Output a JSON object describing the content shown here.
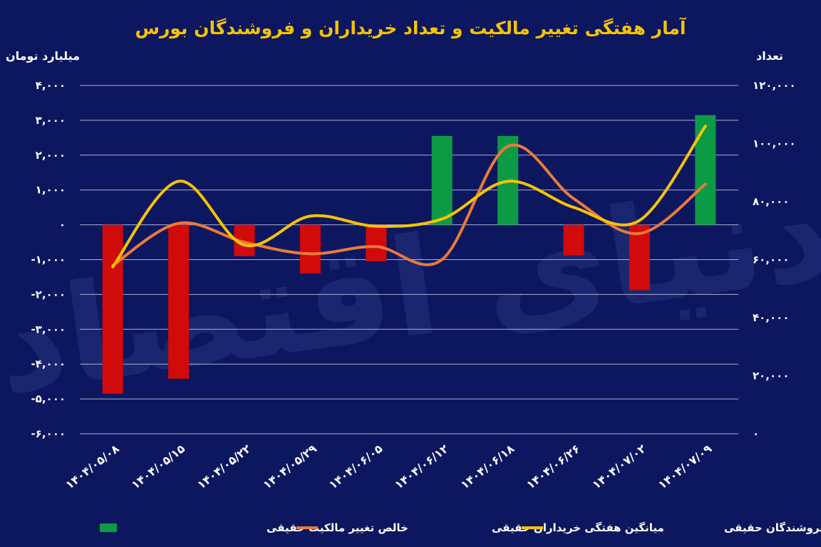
{
  "chart_data": {
    "type": "bar+line",
    "title": "آمار هفتگی تغییر مالکیت و تعداد خریداران و فروشندگان بورس",
    "y_left_label": "میلیارد تومان",
    "y_right_label": "تعداد",
    "y_left_range": [
      -6000,
      4000
    ],
    "y_right_range": [
      0,
      120000
    ],
    "y_left_ticks": [
      "۴,۰۰۰",
      "۳,۰۰۰",
      "۲,۰۰۰",
      "۱,۰۰۰",
      "۰",
      "-۱,۰۰۰",
      "-۲,۰۰۰",
      "-۳,۰۰۰",
      "-۴,۰۰۰",
      "-۵,۰۰۰",
      "-۶,۰۰۰"
    ],
    "y_left_tick_values": [
      4000,
      3000,
      2000,
      1000,
      0,
      -1000,
      -2000,
      -3000,
      -4000,
      -5000,
      -6000
    ],
    "y_right_ticks": [
      "۱۲۰,۰۰۰",
      "۱۰۰,۰۰۰",
      "۸۰,۰۰۰",
      "۶۰,۰۰۰",
      "۴۰,۰۰۰",
      "۲۰,۰۰۰",
      "۰"
    ],
    "y_right_tick_values": [
      120000,
      100000,
      80000,
      60000,
      40000,
      20000,
      0
    ],
    "categories": [
      "۱۴۰۴/۰۵/۰۸",
      "۱۴۰۴/۰۵/۱۵",
      "۱۴۰۴/۰۵/۲۲",
      "۱۴۰۴/۰۵/۲۹",
      "۱۴۰۴/۰۶/۰۵",
      "۱۴۰۴/۰۶/۱۲",
      "۱۴۰۴/۰۶/۱۸",
      "۱۴۰۴/۰۶/۲۶",
      "۱۴۰۴/۰۷/۰۲",
      "۱۴۰۴/۰۷/۰۹"
    ],
    "grid": true,
    "legend_placement": "bottom",
    "series": [
      {
        "name": "خالص تغییر مالکیت حقیقی",
        "kind": "bar",
        "axis": "left",
        "values": [
          -4850,
          -4420,
          -900,
          -1400,
          -1050,
          2550,
          2550,
          -880,
          -1880,
          3150
        ],
        "color_positive": "#0d9a45",
        "color_negative": "#d10a0a"
      },
      {
        "name": "میانگین هفتگی خریداران حقیقی",
        "kind": "line",
        "axis": "right",
        "values": [
          58000,
          72500,
          66000,
          62000,
          64500,
          60000,
          99000,
          81000,
          69000,
          86000
        ],
        "color": "#ea7a3a"
      },
      {
        "name": "میانگین هفتگی فروشندگان حقیقی",
        "kind": "line",
        "axis": "right",
        "values": [
          57500,
          87000,
          65000,
          75000,
          71500,
          74000,
          87000,
          78000,
          73500,
          106000
        ],
        "color": "#f5c400"
      }
    ]
  },
  "watermark": "دنیای اقتصاد"
}
